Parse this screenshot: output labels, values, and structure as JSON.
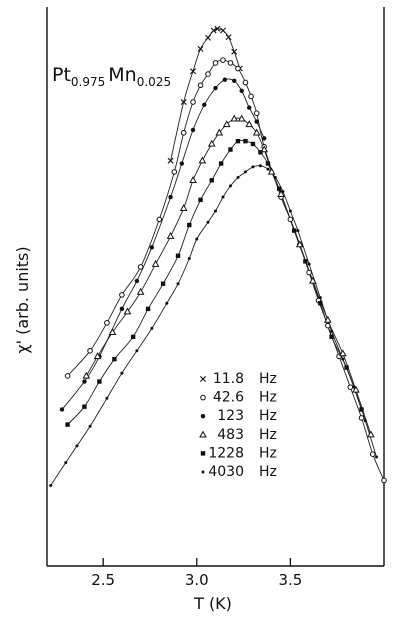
{
  "chart_data": {
    "type": "scatter",
    "annotation": {
      "compound_base1": "Pt",
      "compound_sub1": "0.975",
      "compound_base2": "Mn",
      "compound_sub2": "0.025"
    },
    "xlabel": "T (K)",
    "ylabel": "χ' (arb. units)",
    "xlim": [
      2.2,
      4.0
    ],
    "ylim": [
      0,
      1
    ],
    "x_ticks": [
      2.5,
      3.0,
      3.5
    ],
    "x_tick_labels": [
      "2.5",
      "3.0",
      "3.5"
    ],
    "grid": false,
    "legend_position": "lower-middle",
    "series": [
      {
        "name": "11.8 Hz",
        "marker": "x",
        "points": [
          [
            2.86,
            0.725
          ],
          [
            2.93,
            0.83
          ],
          [
            2.98,
            0.885
          ],
          [
            3.02,
            0.925
          ],
          [
            3.06,
            0.945
          ],
          [
            3.09,
            0.958
          ],
          [
            3.11,
            0.961
          ],
          [
            3.14,
            0.958
          ],
          [
            3.17,
            0.946
          ],
          [
            3.2,
            0.92
          ],
          [
            3.23,
            0.89
          ]
        ]
      },
      {
        "name": "42.6 Hz",
        "marker": "circle-open",
        "points": [
          [
            2.31,
            0.34
          ],
          [
            2.43,
            0.385
          ],
          [
            2.52,
            0.435
          ],
          [
            2.6,
            0.485
          ],
          [
            2.7,
            0.535
          ],
          [
            2.8,
            0.62
          ],
          [
            2.88,
            0.705
          ],
          [
            2.93,
            0.775
          ],
          [
            2.98,
            0.83
          ],
          [
            3.02,
            0.86
          ],
          [
            3.06,
            0.88
          ],
          [
            3.1,
            0.9
          ],
          [
            3.14,
            0.905
          ],
          [
            3.18,
            0.9
          ],
          [
            3.22,
            0.89
          ],
          [
            3.26,
            0.865
          ],
          [
            3.29,
            0.84
          ],
          [
            3.32,
            0.81
          ],
          [
            3.36,
            0.75
          ],
          [
            3.45,
            0.66
          ],
          [
            3.5,
            0.62
          ],
          [
            3.55,
            0.575
          ],
          [
            3.6,
            0.525
          ],
          [
            3.65,
            0.475
          ],
          [
            3.7,
            0.43
          ],
          [
            3.76,
            0.375
          ],
          [
            3.82,
            0.32
          ],
          [
            3.88,
            0.265
          ],
          [
            3.94,
            0.2
          ],
          [
            4.0,
            0.153
          ]
        ]
      },
      {
        "name": "123 Hz",
        "marker": "dot",
        "points": [
          [
            2.28,
            0.28
          ],
          [
            2.4,
            0.33
          ],
          [
            2.48,
            0.375
          ],
          [
            2.6,
            0.46
          ],
          [
            2.68,
            0.51
          ],
          [
            2.76,
            0.57
          ],
          [
            2.86,
            0.66
          ],
          [
            2.92,
            0.72
          ],
          [
            2.98,
            0.78
          ],
          [
            3.04,
            0.825
          ],
          [
            3.1,
            0.855
          ],
          [
            3.15,
            0.87
          ],
          [
            3.2,
            0.868
          ],
          [
            3.24,
            0.85
          ],
          [
            3.28,
            0.82
          ],
          [
            3.32,
            0.795
          ],
          [
            3.36,
            0.765
          ]
        ]
      },
      {
        "name": "483 Hz",
        "marker": "triangle-open",
        "points": [
          [
            2.41,
            0.34
          ],
          [
            2.47,
            0.375
          ],
          [
            2.55,
            0.418
          ],
          [
            2.63,
            0.455
          ],
          [
            2.7,
            0.49
          ],
          [
            2.78,
            0.54
          ],
          [
            2.86,
            0.59
          ],
          [
            2.93,
            0.64
          ],
          [
            2.98,
            0.69
          ],
          [
            3.03,
            0.725
          ],
          [
            3.08,
            0.755
          ],
          [
            3.12,
            0.775
          ],
          [
            3.16,
            0.79
          ],
          [
            3.2,
            0.8
          ],
          [
            3.24,
            0.8
          ],
          [
            3.28,
            0.79
          ],
          [
            3.32,
            0.775
          ],
          [
            3.36,
            0.745
          ],
          [
            3.4,
            0.705
          ],
          [
            3.45,
            0.665
          ],
          [
            3.55,
            0.575
          ],
          [
            3.62,
            0.51
          ],
          [
            3.7,
            0.44
          ],
          [
            3.78,
            0.38
          ],
          [
            3.85,
            0.315
          ],
          [
            3.93,
            0.235
          ]
        ]
      },
      {
        "name": "1228 Hz",
        "marker": "square-filled",
        "points": [
          [
            2.31,
            0.253
          ],
          [
            2.4,
            0.285
          ],
          [
            2.48,
            0.33
          ],
          [
            2.56,
            0.37
          ],
          [
            2.66,
            0.41
          ],
          [
            2.74,
            0.46
          ],
          [
            2.82,
            0.505
          ],
          [
            2.9,
            0.555
          ],
          [
            2.96,
            0.61
          ],
          [
            3.02,
            0.655
          ],
          [
            3.08,
            0.69
          ],
          [
            3.13,
            0.72
          ],
          [
            3.18,
            0.745
          ],
          [
            3.22,
            0.76
          ],
          [
            3.26,
            0.76
          ],
          [
            3.3,
            0.755
          ],
          [
            3.34,
            0.74
          ],
          [
            3.38,
            0.72
          ],
          [
            3.44,
            0.675
          ],
          [
            3.52,
            0.6
          ],
          [
            3.58,
            0.545
          ],
          [
            3.66,
            0.47
          ],
          [
            3.72,
            0.41
          ],
          [
            3.8,
            0.355
          ],
          [
            3.88,
            0.28
          ]
        ]
      },
      {
        "name": "4030 Hz",
        "marker": "dot-small",
        "points": [
          [
            2.22,
            0.144
          ],
          [
            2.3,
            0.185
          ],
          [
            2.36,
            0.215
          ],
          [
            2.43,
            0.25
          ],
          [
            2.52,
            0.3
          ],
          [
            2.6,
            0.345
          ],
          [
            2.68,
            0.385
          ],
          [
            2.76,
            0.425
          ],
          [
            2.84,
            0.47
          ],
          [
            2.9,
            0.505
          ],
          [
            2.96,
            0.55
          ],
          [
            3.0,
            0.585
          ],
          [
            3.06,
            0.615
          ],
          [
            3.1,
            0.635
          ],
          [
            3.14,
            0.66
          ],
          [
            3.18,
            0.68
          ],
          [
            3.22,
            0.695
          ],
          [
            3.26,
            0.705
          ],
          [
            3.3,
            0.714
          ],
          [
            3.34,
            0.716
          ],
          [
            3.38,
            0.71
          ],
          [
            3.42,
            0.695
          ],
          [
            3.46,
            0.67
          ],
          [
            3.5,
            0.635
          ],
          [
            3.54,
            0.6
          ],
          [
            3.6,
            0.54
          ],
          [
            3.66,
            0.48
          ],
          [
            3.72,
            0.42
          ],
          [
            3.78,
            0.37
          ],
          [
            3.84,
            0.32
          ],
          [
            3.9,
            0.26
          ],
          [
            3.96,
            0.195
          ]
        ]
      }
    ]
  }
}
